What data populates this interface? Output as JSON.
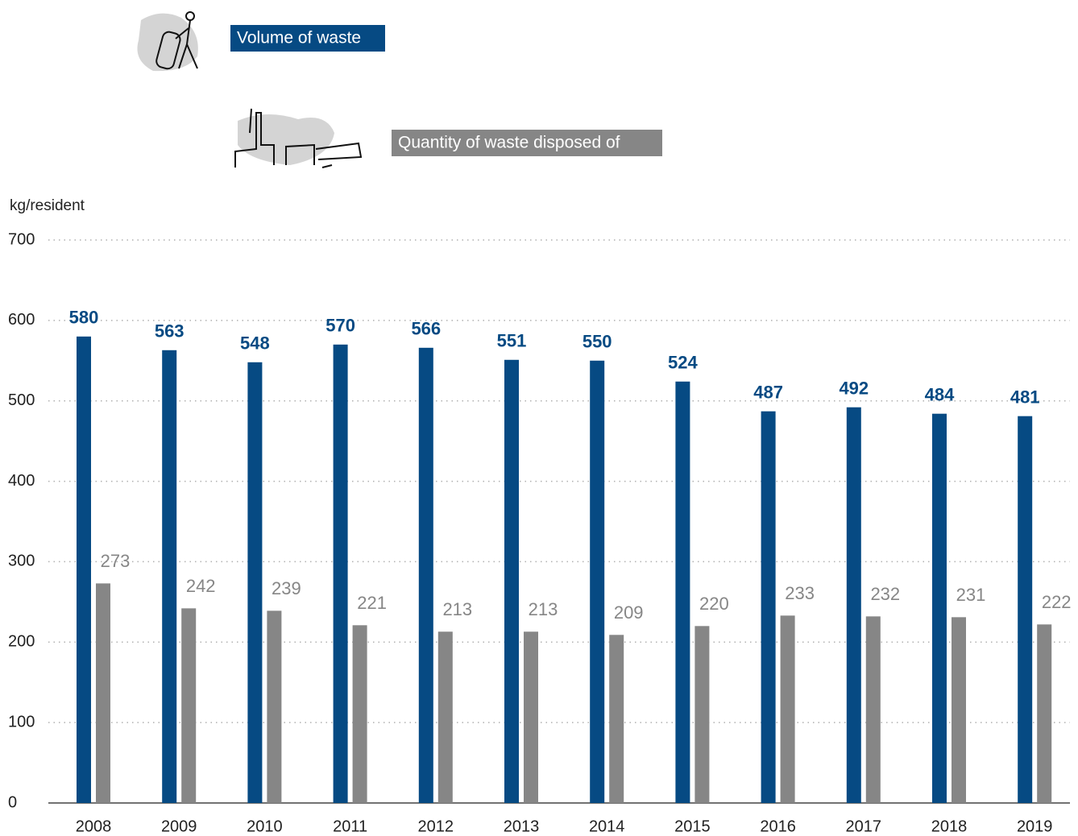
{
  "chart_data": {
    "type": "bar",
    "y_label": "kg/resident",
    "categories": [
      "2008",
      "2009",
      "2010",
      "2011",
      "2012",
      "2013",
      "2014",
      "2015",
      "2016",
      "2017",
      "2018",
      "2019"
    ],
    "series": [
      {
        "name": "Volume of waste",
        "color": "#064a83",
        "values": [
          580,
          563,
          548,
          570,
          566,
          551,
          550,
          524,
          487,
          492,
          484,
          481
        ]
      },
      {
        "name": "Quantity of waste disposed of",
        "color": "#868686",
        "values": [
          273,
          242,
          239,
          221,
          213,
          213,
          209,
          220,
          233,
          232,
          231,
          222
        ]
      }
    ],
    "ylim": [
      0,
      700
    ],
    "yticks": [
      0,
      100,
      200,
      300,
      400,
      500,
      600,
      700
    ],
    "grid": true
  }
}
